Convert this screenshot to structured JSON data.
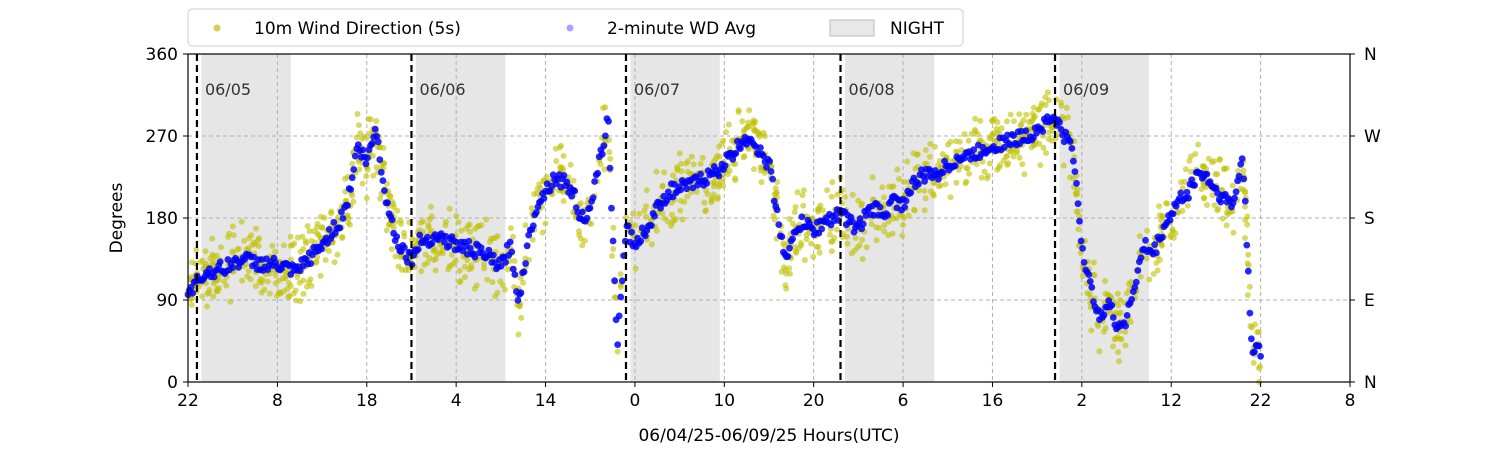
{
  "chart_data": {
    "type": "scatter",
    "title": "",
    "xlabel": "06/04/25-06/09/25  Hours(UTC)",
    "ylabel": "Degrees",
    "x_range_hours": [
      22,
      152
    ],
    "xticks": [
      {
        "hour": 22,
        "label": "22"
      },
      {
        "hour": 32,
        "label": "8"
      },
      {
        "hour": 42,
        "label": "18"
      },
      {
        "hour": 52,
        "label": "4"
      },
      {
        "hour": 62,
        "label": "14"
      },
      {
        "hour": 72,
        "label": "0"
      },
      {
        "hour": 82,
        "label": "10"
      },
      {
        "hour": 92,
        "label": "20"
      },
      {
        "hour": 102,
        "label": "6"
      },
      {
        "hour": 112,
        "label": "16"
      },
      {
        "hour": 122,
        "label": "2"
      },
      {
        "hour": 132,
        "label": "12"
      },
      {
        "hour": 142,
        "label": "22"
      },
      {
        "hour": 152,
        "label": "8"
      }
    ],
    "ylim": [
      0,
      360
    ],
    "yticks": [
      0,
      90,
      180,
      270,
      360
    ],
    "y2ticks": [
      {
        "value": 0,
        "label": "N"
      },
      {
        "value": 90,
        "label": "E"
      },
      {
        "value": 180,
        "label": "S"
      },
      {
        "value": 270,
        "label": "W"
      },
      {
        "value": 360,
        "label": "N"
      }
    ],
    "grid": true,
    "legend_position": "top-left",
    "legend": [
      {
        "label": "10m Wind Direction (5s)",
        "kind": "dot",
        "color": "#bfbf00"
      },
      {
        "label": "2-minute WD Avg",
        "kind": "dot",
        "color": "#0000ff"
      },
      {
        "label": "NIGHT",
        "kind": "patch",
        "color": "#d9d9d9"
      }
    ],
    "day_markers": [
      {
        "hour": 23,
        "label": "06/05"
      },
      {
        "hour": 47,
        "label": "06/06"
      },
      {
        "hour": 71,
        "label": "06/07"
      },
      {
        "hour": 95,
        "label": "06/08"
      },
      {
        "hour": 119,
        "label": "06/09"
      }
    ],
    "night_periods": [
      [
        23.5,
        33.5
      ],
      [
        47.5,
        57.5
      ],
      [
        71.5,
        81.5
      ],
      [
        95.5,
        105.5
      ],
      [
        119.5,
        129.5
      ]
    ],
    "series": [
      {
        "name": "2-minute WD Avg",
        "color": "#0000ff",
        "x": [
          22,
          24,
          26,
          28,
          30,
          32,
          34,
          36,
          37,
          38,
          39,
          40,
          41,
          42,
          43,
          44,
          45,
          46,
          47,
          48,
          50,
          52,
          54,
          56,
          57,
          58,
          59,
          60,
          61,
          62,
          63,
          64,
          65,
          66,
          67,
          68,
          69,
          70,
          71,
          72,
          73,
          74,
          75,
          76,
          78,
          80,
          81,
          82,
          83,
          84,
          85,
          86,
          87,
          88,
          89,
          90,
          91,
          92,
          93,
          94,
          95,
          96,
          97,
          98,
          99,
          100,
          101,
          102,
          103,
          104,
          106,
          108,
          110,
          112,
          114,
          116,
          118,
          119,
          120,
          121,
          122,
          123,
          124,
          125,
          126,
          127,
          128,
          129,
          130,
          131,
          132,
          133,
          134,
          135,
          136,
          137,
          138,
          139,
          140,
          141,
          142
        ],
        "values": [
          100,
          120,
          125,
          135,
          130,
          128,
          120,
          140,
          150,
          165,
          175,
          205,
          260,
          240,
          280,
          210,
          165,
          145,
          135,
          155,
          160,
          150,
          145,
          135,
          125,
          150,
          90,
          150,
          195,
          210,
          225,
          220,
          210,
          180,
          185,
          240,
          290,
          40,
          170,
          150,
          165,
          180,
          200,
          210,
          215,
          225,
          230,
          240,
          250,
          265,
          270,
          250,
          240,
          180,
          130,
          170,
          175,
          165,
          175,
          180,
          185,
          175,
          170,
          185,
          190,
          185,
          200,
          195,
          215,
          225,
          230,
          245,
          250,
          260,
          265,
          270,
          285,
          290,
          270,
          255,
          150,
          100,
          75,
          85,
          60,
          70,
          110,
          150,
          140,
          165,
          185,
          200,
          210,
          230,
          225,
          210,
          200,
          195,
          250,
          40,
          30
        ]
      },
      {
        "name": "10m Wind Direction (5s)",
        "color": "#bfbf00",
        "spread_degrees": 45
      }
    ]
  }
}
